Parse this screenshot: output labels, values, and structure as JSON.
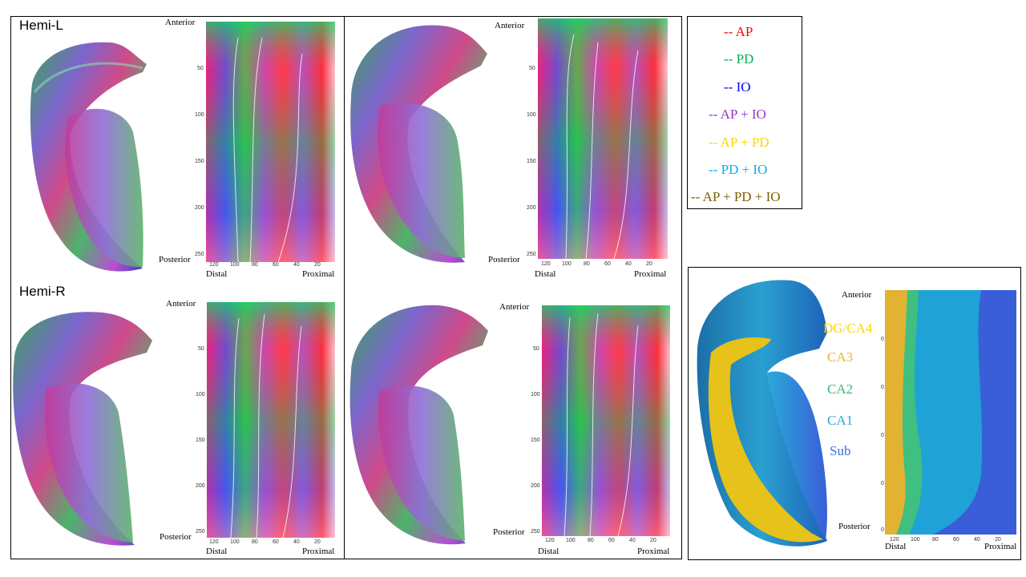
{
  "hemispheres": {
    "left_label": "Hemi-L",
    "right_label": "Hemi-R"
  },
  "axis_labels": {
    "anterior": "Anterior",
    "posterior": "Posterior",
    "distal": "Distal",
    "proximal": "Proximal"
  },
  "y_ticks": [
    "50",
    "100",
    "150",
    "200",
    "250"
  ],
  "x_ticks": [
    "120",
    "100",
    "80",
    "60",
    "40",
    "20"
  ],
  "subfield_y_ticks": [
    "0",
    "0",
    "0",
    "0",
    "0"
  ],
  "legend": {
    "items": [
      {
        "label": "-- AP",
        "color": "#ff0000"
      },
      {
        "label": "-- PD",
        "color": "#00b050"
      },
      {
        "label": "-- IO",
        "color": "#0000ff"
      },
      {
        "label": "-- AP + IO",
        "color": "#9933cc"
      },
      {
        "label": "-- AP + PD",
        "color": "#ffd400"
      },
      {
        "label": "-- PD + IO",
        "color": "#00b0f0"
      },
      {
        "label": "-- AP + PD + IO",
        "color": "#7f5f00"
      }
    ]
  },
  "subfields": {
    "items": [
      {
        "label": "DG/CA4",
        "color": "#ffd600"
      },
      {
        "label": "CA3",
        "color": "#e8b43a"
      },
      {
        "label": "CA2",
        "color": "#3fb87a"
      },
      {
        "label": "CA1",
        "color": "#2aa9d8"
      },
      {
        "label": "Sub",
        "color": "#3a6fd8"
      }
    ]
  }
}
